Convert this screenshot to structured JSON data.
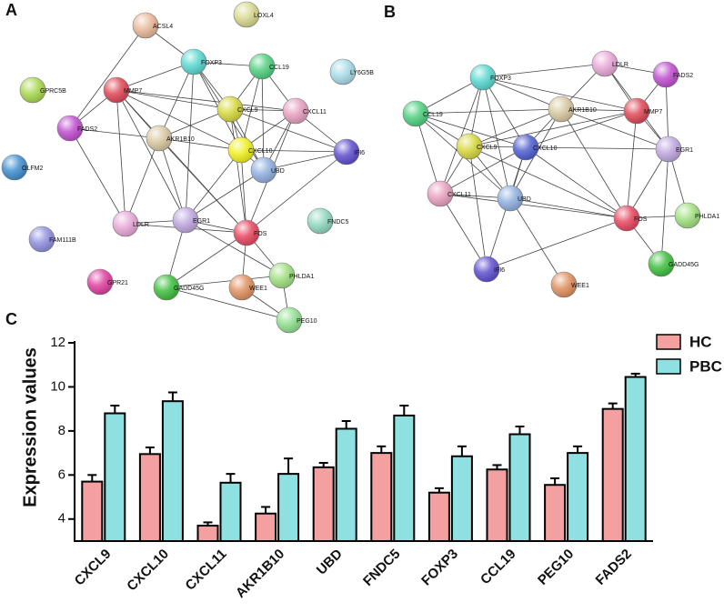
{
  "networks": [
    {
      "label": "A",
      "nodes": [
        {
          "label": "ACSL4",
          "color": "#e8b89a"
        },
        {
          "label": "LOXL4",
          "color": "#d8d890"
        },
        {
          "label": "FOXP3",
          "color": "#5ad8d0"
        },
        {
          "label": "CCL19",
          "color": "#50d080"
        },
        {
          "label": "LY6G5B",
          "color": "#a8dce8"
        },
        {
          "label": "GPRC5B",
          "color": "#a8d850"
        },
        {
          "label": "MMP7",
          "color": "#e04858"
        },
        {
          "label": "CXCL9",
          "color": "#d8d840"
        },
        {
          "label": "CXCL11",
          "color": "#e8a0c0"
        },
        {
          "label": "FADS2",
          "color": "#c050d0"
        },
        {
          "label": "AKR1B10",
          "color": "#d8c8a0"
        },
        {
          "label": "CXCL10",
          "color": "#f0f020"
        },
        {
          "label": "IFI6",
          "color": "#6050d0"
        },
        {
          "label": "UBD",
          "color": "#90b0e0"
        },
        {
          "label": "OLFM2",
          "color": "#4090d0"
        },
        {
          "label": "LDLR",
          "color": "#e8a8d8"
        },
        {
          "label": "EGR1",
          "color": "#c0a8e0"
        },
        {
          "label": "FOS",
          "color": "#e84860"
        },
        {
          "label": "FNDC5",
          "color": "#90d8c0"
        },
        {
          "label": "FAM111B",
          "color": "#9090e0"
        },
        {
          "label": "GPR21",
          "color": "#e040a0"
        },
        {
          "label": "GADD45G",
          "color": "#40c040"
        },
        {
          "label": "WEE1",
          "color": "#e09060"
        },
        {
          "label": "PHLDA1",
          "color": "#a0e080"
        },
        {
          "label": "PEG10",
          "color": "#90e090"
        }
      ]
    },
    {
      "label": "B",
      "nodes": [
        {
          "label": "LDLR",
          "color": "#e8a8d8"
        },
        {
          "label": "FADS2",
          "color": "#c050d0"
        },
        {
          "label": "FOXP3",
          "color": "#5ad8d0"
        },
        {
          "label": "AKR1B10",
          "color": "#d8c8a0"
        },
        {
          "label": "MMP7",
          "color": "#e04858"
        },
        {
          "label": "CCL19",
          "color": "#50d080"
        },
        {
          "label": "EGR1",
          "color": "#c0a8e0"
        },
        {
          "label": "CXCL9",
          "color": "#d8d840"
        },
        {
          "label": "CXCL10",
          "color": "#5060d0"
        },
        {
          "label": "CXCL11",
          "color": "#e8a0c0"
        },
        {
          "label": "UBD",
          "color": "#90b0e0"
        },
        {
          "label": "FOS",
          "color": "#e84860"
        },
        {
          "label": "PHLDA1",
          "color": "#a0e080"
        },
        {
          "label": "GADD45G",
          "color": "#40c040"
        },
        {
          "label": "IFI6",
          "color": "#6050d0"
        },
        {
          "label": "WEE1",
          "color": "#e09060"
        }
      ]
    }
  ],
  "chart_data": {
    "type": "bar",
    "panel_label": "C",
    "ylabel": "Expression values",
    "categories": [
      "CXCL9",
      "CXCL10",
      "CXCL11",
      "AKR1B10",
      "UBD",
      "FNDC5",
      "FOXP3",
      "CCL19",
      "PEG10",
      "FADS2"
    ],
    "series": [
      {
        "name": "HC",
        "color": "#f4a0a0",
        "values": [
          5.7,
          6.95,
          3.7,
          4.25,
          6.35,
          7.0,
          5.2,
          6.25,
          5.55,
          9.0
        ],
        "errors": [
          0.3,
          0.3,
          0.15,
          0.3,
          0.2,
          0.3,
          0.2,
          0.2,
          0.3,
          0.25
        ]
      },
      {
        "name": "PBC",
        "color": "#8fe0e0",
        "values": [
          8.8,
          9.35,
          5.65,
          6.05,
          8.1,
          8.7,
          6.85,
          7.85,
          7.0,
          10.45
        ],
        "errors": [
          0.35,
          0.4,
          0.4,
          0.7,
          0.35,
          0.45,
          0.45,
          0.35,
          0.3,
          0.15
        ]
      }
    ],
    "ylim": [
      3,
      12
    ],
    "yticks": [
      4,
      6,
      8,
      10,
      12
    ],
    "legend": "top-right"
  }
}
